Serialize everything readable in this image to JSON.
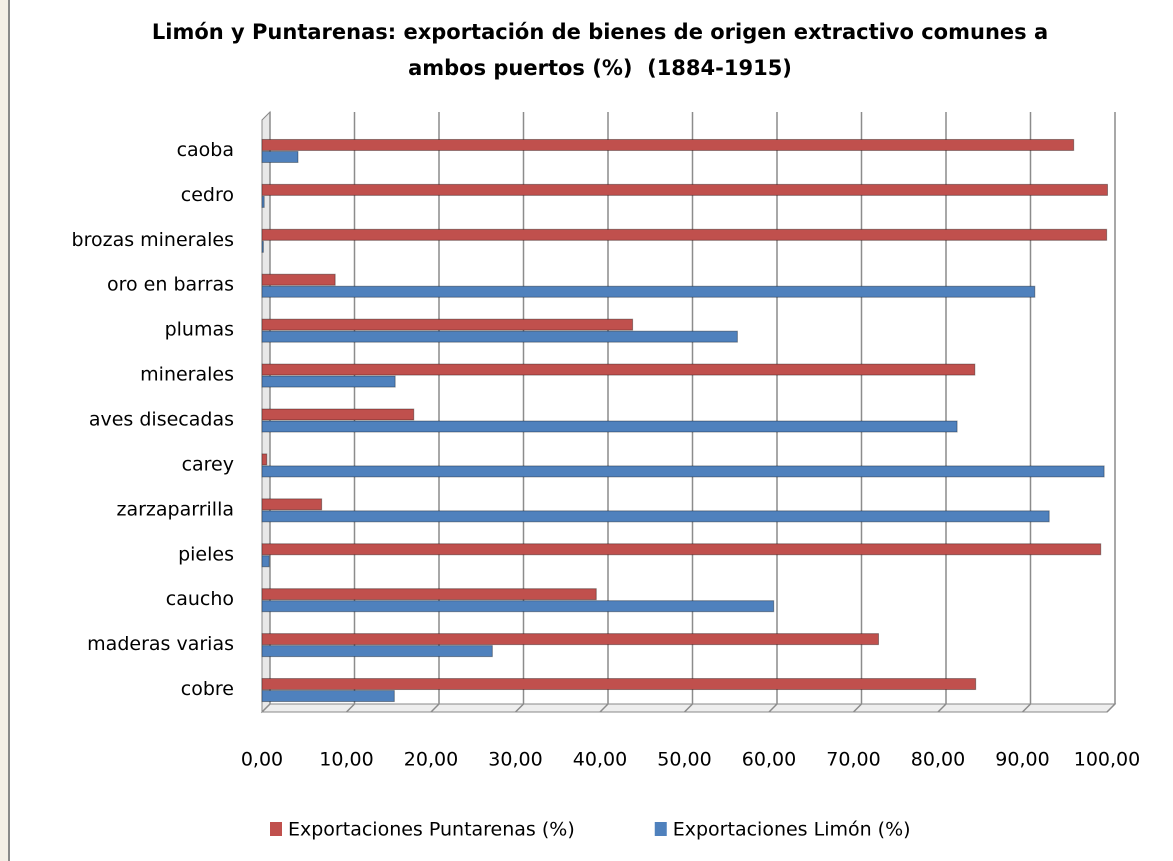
{
  "chart_data": {
    "type": "barh",
    "title": "Limón y Puntarenas: exportación de bienes de origen extractivo comunes a ambos puertos (%)  (1884-1915)",
    "categories": [
      "caoba",
      "cedro",
      "brozas minerales",
      "oro en barras",
      "plumas",
      "minerales",
      "aves disecadas",
      "carey",
      "zarzaparrilla",
      "pieles",
      "caucho",
      "maderas varias",
      "cobre"
    ],
    "series": [
      {
        "name": "Exportaciones Puntarenas (%)",
        "color": "#c0504d",
        "values": [
          96,
          100,
          99.9,
          8.6,
          43.8,
          84.3,
          17.9,
          0.5,
          7.0,
          99.2,
          39.5,
          72.9,
          84.4
        ]
      },
      {
        "name": "Exportaciones Limón (%)",
        "color": "#4f81bd",
        "values": [
          4.2,
          0.2,
          0.1,
          91.4,
          56.2,
          15.7,
          82.2,
          99.6,
          93.1,
          0.8,
          60.5,
          27.2,
          15.6
        ]
      }
    ],
    "xlim": [
      0,
      100
    ],
    "xticks": [
      {
        "value": 0,
        "label": "0,00"
      },
      {
        "value": 10,
        "label": "10,00"
      },
      {
        "value": 20,
        "label": "20,00"
      },
      {
        "value": 30,
        "label": "30,00"
      },
      {
        "value": 40,
        "label": "40,00"
      },
      {
        "value": 50,
        "label": "50,00"
      },
      {
        "value": 60,
        "label": "60,00"
      },
      {
        "value": 70,
        "label": "70,00"
      },
      {
        "value": 80,
        "label": "80,00"
      },
      {
        "value": 90,
        "label": "90,00"
      },
      {
        "value": 100,
        "label": "100,00"
      }
    ],
    "grid": true,
    "legend": "bottom"
  }
}
